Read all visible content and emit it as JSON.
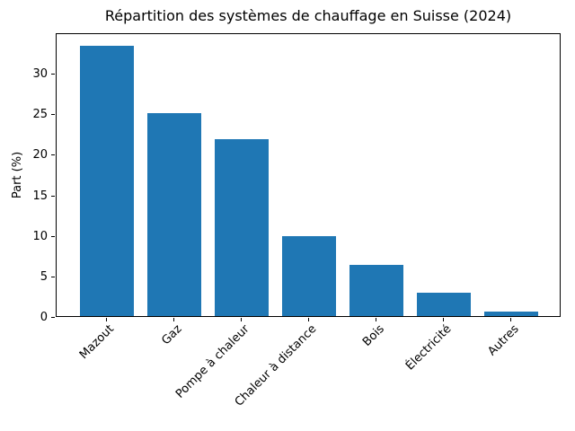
{
  "chart_data": {
    "type": "bar",
    "title": "Répartition des systèmes de chauffage en Suisse (2024)",
    "xlabel": "",
    "ylabel": "Part (%)",
    "categories": [
      "Mazout",
      "Gaz",
      "Pompe à chaleur",
      "Chaleur à distance",
      "Bois",
      "Électricité",
      "Autres"
    ],
    "values": [
      33.3,
      25.0,
      21.8,
      9.9,
      6.3,
      2.9,
      0.6
    ],
    "ylim": [
      0,
      35
    ],
    "yticks": [
      0,
      5,
      10,
      15,
      20,
      25,
      30
    ],
    "bar_color": "#1f77b4",
    "bar_width_fraction": 0.8,
    "xtick_rotation_deg": 45,
    "grid": false,
    "legend_position": "none"
  }
}
